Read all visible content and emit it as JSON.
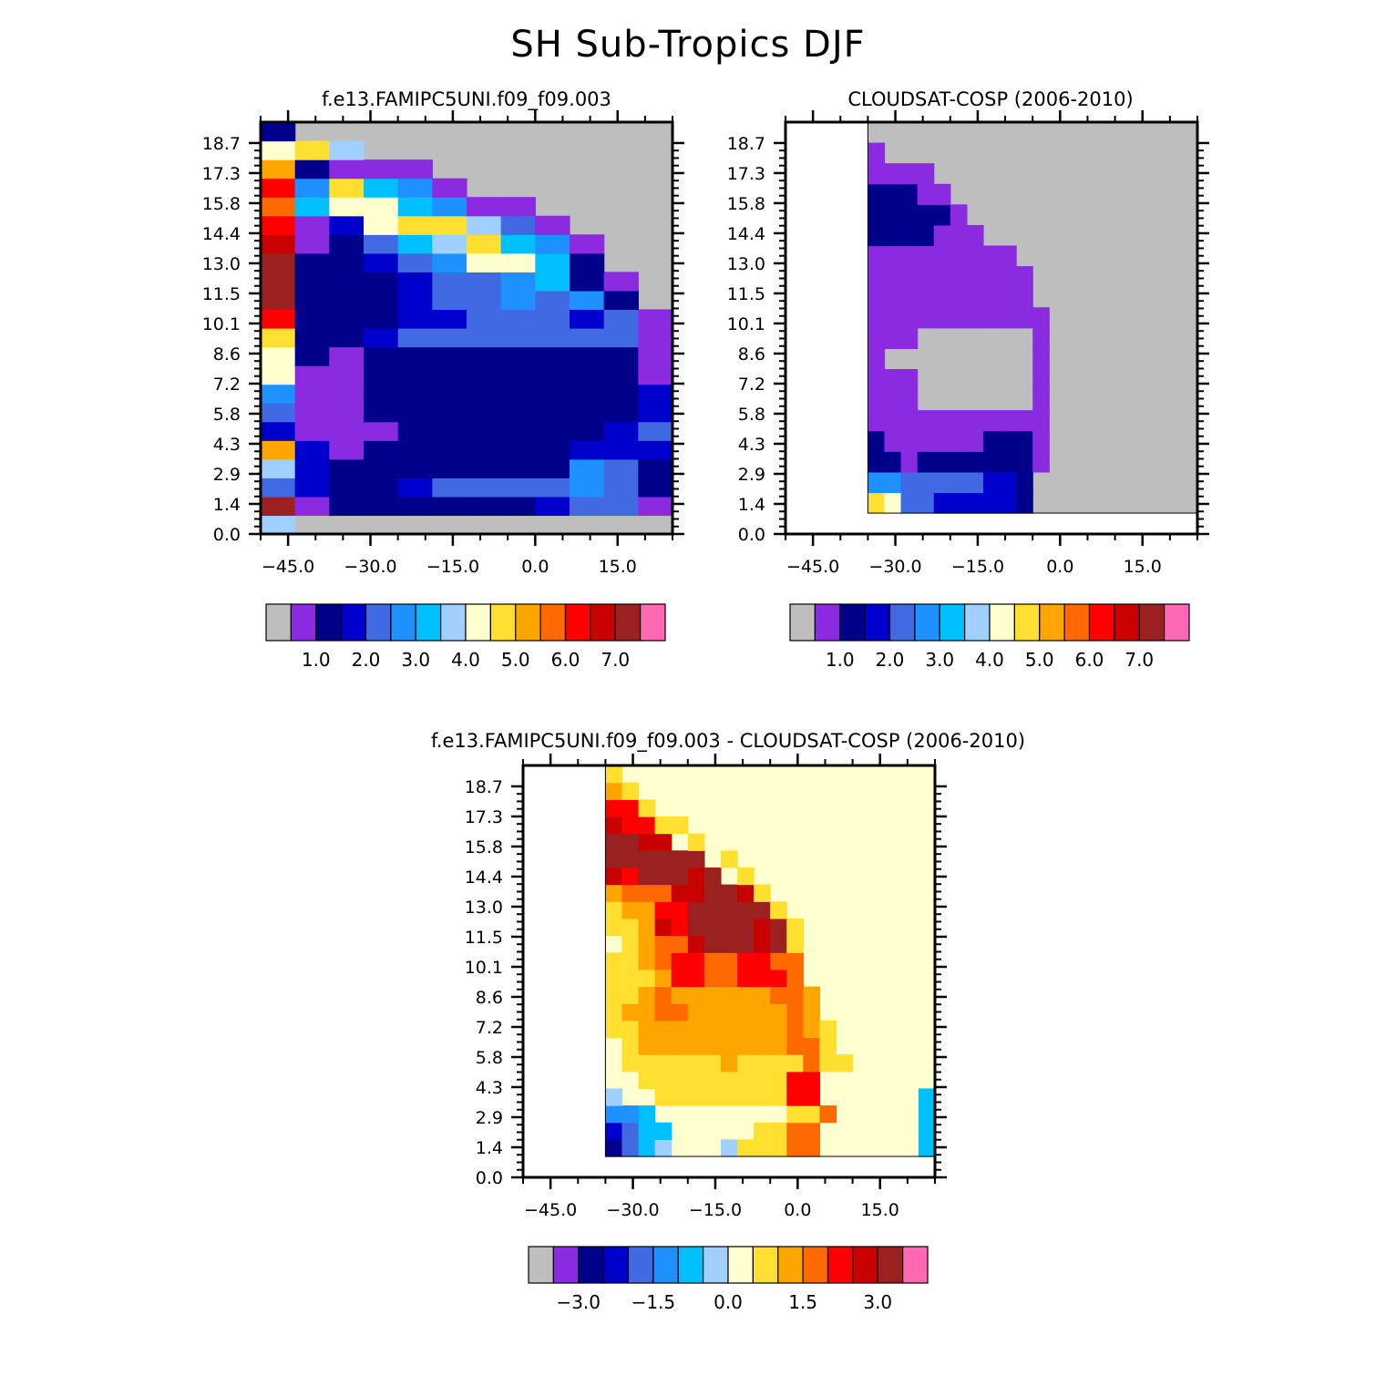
{
  "title": "SH Sub-Tropics DJF",
  "chart_data": [
    {
      "type": "heatmap",
      "name": "model",
      "title": "f.e13.FAMIPC5UNI.f09_f09.003",
      "x_tick_labels": [
        "-45.0",
        "-30.0",
        "-15.0",
        "0.0",
        "15.0"
      ],
      "y_tick_labels": [
        "0.0",
        "1.4",
        "2.9",
        "4.3",
        "5.8",
        "7.2",
        "8.6",
        "10.1",
        "11.5",
        "13.0",
        "14.4",
        "15.8",
        "17.3",
        "18.7"
      ],
      "xlim": [
        -50,
        25
      ],
      "ylim": [
        0,
        19.7
      ],
      "colorbar": {
        "colors": [
          "#bebebe",
          "#8a2be2",
          "#00008b",
          "#0000cd",
          "#4169e1",
          "#1e90ff",
          "#00bfff",
          "#a0d0ff",
          "#ffffd0",
          "#ffe030",
          "#ffa500",
          "#ff6a00",
          "#ff0000",
          "#c80000",
          "#9b2020",
          "#ff69b4"
        ],
        "labels": [
          "1.0",
          "2.0",
          "3.0",
          "4.0",
          "5.0",
          "6.0",
          "7.0"
        ]
      },
      "data_region": [
        -50,
        0,
        25,
        19.7
      ],
      "background_index": 0,
      "rows": [
        "HAAAAAAAAAAA",
        "OBCCCCCCDEEB",
        "EDCCDEEEEFEC",
        "HDCCCCCCCFEC",
        "KDBCCCCCCDDD",
        "DBBBCCCCCCDE",
        "EBBCCCCCCCCD",
        "FBBCCCCCCCCD",
        "IBBCCCCCCCCB",
        "ICBCCCCCCCCB",
        "JCCDEEEEEEEB",
        "MCCCDDEEEDEB",
        "OCCCDEEFEFCA",
        "OCCCDEEFGCBA",
        "OCCDEFIIGCAA",
        "NBCEGHJGFBAA",
        "MBDIJJHEBAAA",
        "LGIIGFBBAAAA",
        "MFJGFBAAAAAA",
        "KCBBBAAAAAAA",
        "IJHAAAAAAAAA",
        "CAAAAAAAAAAA"
      ]
    },
    {
      "type": "heatmap",
      "name": "obs",
      "title": "CLOUDSAT-COSP (2006-2010)",
      "x_tick_labels": [
        "-45.0",
        "-30.0",
        "-15.0",
        "0.0",
        "15.0"
      ],
      "y_tick_labels": [
        "0.0",
        "1.4",
        "2.9",
        "4.3",
        "5.8",
        "7.2",
        "8.6",
        "10.1",
        "11.5",
        "13.0",
        "14.4",
        "15.8",
        "17.3",
        "18.7"
      ],
      "xlim": [
        -50,
        25
      ],
      "ylim": [
        0,
        19.7
      ],
      "colorbar": {
        "colors": [
          "#bebebe",
          "#8a2be2",
          "#00008b",
          "#0000cd",
          "#4169e1",
          "#1e90ff",
          "#00bfff",
          "#a0d0ff",
          "#ffffd0",
          "#ffe030",
          "#ffa500",
          "#ff6a00",
          "#ff0000",
          "#c80000",
          "#9b2020",
          "#ff69b4"
        ],
        "labels": [
          "1.0",
          "2.0",
          "3.0",
          "4.0",
          "5.0",
          "6.0",
          "7.0"
        ]
      },
      "data_region": [
        -35,
        1,
        25,
        19.7
      ],
      "background_index": 0,
      "rows": [
        "JIEEDDDDDCAAAAAAAAAA",
        "FFEEEEEDDCAAAAAAAAAA",
        "CCBCCCCCCCBAAAAAAAAA",
        "CBBBBBBCCCBAAAAAAAAA",
        "BBBBBBBBBBBAAAAAAAAA",
        "BBBAAAAAAABAAAAAAAAA",
        "BBBAAAAAAABAAAAAAAAA",
        "BAAAAAAAAABAAAAAAAAA",
        "BBBAAAAAAABAAAAAAAAA",
        "BBBBBBBBBBBAAAAAAAAA",
        "BBBBBBBBBBAAAAAAAAAA",
        "BBBBBBBBBBAAAAAAAAAA",
        "BBBBBBBBBAAAAAAAAAAA",
        "CCCCBBBAAAAAAAAAAAAA",
        "CCCCCBAAAAAAAAAAAAAA",
        "CCCBBAAAAAAAAAAAAAAA",
        "BBBBAAAAAAAAAAAAAAAA",
        "BAAAAAAAAAAAAAAAAAAA",
        "AAAAAAAAAAAAAAAAAAAA"
      ]
    },
    {
      "type": "heatmap",
      "name": "diff",
      "title": "f.e13.FAMIPC5UNI.f09_f09.003 - CLOUDSAT-COSP (2006-2010)",
      "x_tick_labels": [
        "-45.0",
        "-30.0",
        "-15.0",
        "0.0",
        "15.0"
      ],
      "y_tick_labels": [
        "0.0",
        "1.4",
        "2.9",
        "4.3",
        "5.8",
        "7.2",
        "8.6",
        "10.1",
        "11.5",
        "13.0",
        "14.4",
        "15.8",
        "17.3",
        "18.7"
      ],
      "xlim": [
        -50,
        25
      ],
      "ylim": [
        0,
        19.7
      ],
      "colorbar": {
        "colors": [
          "#bebebe",
          "#8a2be2",
          "#00008b",
          "#0000cd",
          "#4169e1",
          "#1e90ff",
          "#00bfff",
          "#a0d0ff",
          "#ffffd0",
          "#ffe030",
          "#ffa500",
          "#ff6a00",
          "#ff0000",
          "#c80000",
          "#9b2020",
          "#ff69b4"
        ],
        "labels": [
          "-3.0",
          "-1.5",
          "0.0",
          "1.5",
          "3.0"
        ]
      },
      "data_region": [
        -35,
        1,
        25,
        19.7
      ],
      "background_index": 8,
      "rows": [
        "CEGHIIIHJJJLLIIIIIIG",
        "DEGGIIIIIJJLLIIIIIIG",
        "FFGIIIIIIIIJJLIIIIIG",
        "HIIJJJJJJJJMMIIIIIIG",
        "IIJJJJJJJJJMMIIIIIII",
        "IJJJJJJKJJJJLJJIIIII",
        "IJKKKKKKKKKLLJIIIIII",
        "JJKKKKKKKKKLKJIIIIII",
        "JKKLLKKKKKKLKIIIIIII",
        "JJKLKKKKKKLLKIIIIIII",
        "JJJKMMLLMMMLIIIIIIII",
        "JJKLMMLLMMLLIIIIIIII",
        "IJKLLNOOONOJIIIIIIII",
        "JJKNMOOOONOJIIIIIIII",
        "JKKMMOOOOOJIIIIIIIII",
        "KLLLNNOONJIIIIIIIIII",
        "NMOOONOIJIIIIIIIIIII",
        "OOOOOOIJIIIIIIIIIIII",
        "OONNIJIIIIIIIIIIIIII",
        "NMMJJIIIIIIIIIIIIIII",
        "MMJIIIIIIIIIIIIIIIII",
        "KJIIIIIIIIIIIIIIIIII",
        "JIIIIIIIIIIIIIIIIIII"
      ]
    }
  ]
}
